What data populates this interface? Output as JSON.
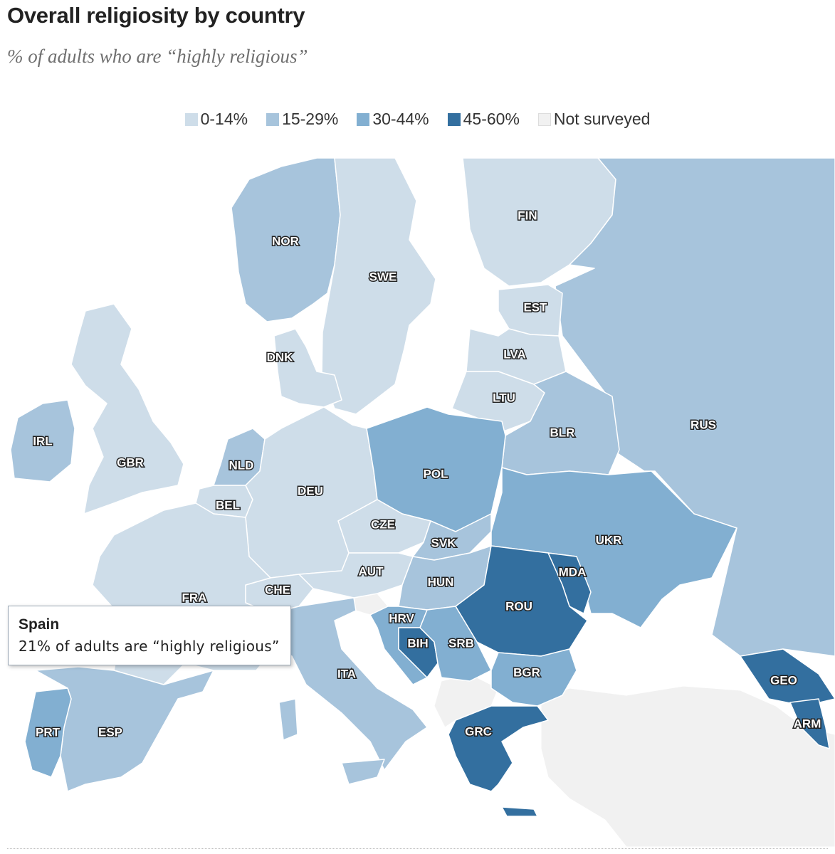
{
  "title": "Overall religiosity by country",
  "subtitle": "% of adults who are “highly religious”",
  "legend": [
    {
      "label": "0-14%",
      "color": "#cedde9"
    },
    {
      "label": "15-29%",
      "color": "#a7c4dc"
    },
    {
      "label": "30-44%",
      "color": "#82afd1"
    },
    {
      "label": "45-60%",
      "color": "#336f9f"
    },
    {
      "label": "Not surveyed",
      "color": "#f1f1f1"
    }
  ],
  "map": {
    "sea_color": "#ffffff",
    "countries": [
      {
        "code": "NOR",
        "bin": "15-29%"
      },
      {
        "code": "SWE",
        "bin": "0-14%"
      },
      {
        "code": "FIN",
        "bin": "0-14%"
      },
      {
        "code": "EST",
        "bin": "0-14%"
      },
      {
        "code": "LVA",
        "bin": "0-14%"
      },
      {
        "code": "LTU",
        "bin": "0-14%"
      },
      {
        "code": "DNK",
        "bin": "0-14%"
      },
      {
        "code": "IRL",
        "bin": "15-29%"
      },
      {
        "code": "GBR",
        "bin": "0-14%"
      },
      {
        "code": "NLD",
        "bin": "15-29%"
      },
      {
        "code": "BEL",
        "bin": "0-14%"
      },
      {
        "code": "DEU",
        "bin": "0-14%"
      },
      {
        "code": "POL",
        "bin": "30-44%"
      },
      {
        "code": "BLR",
        "bin": "15-29%"
      },
      {
        "code": "RUS",
        "bin": "15-29%"
      },
      {
        "code": "CZE",
        "bin": "0-14%"
      },
      {
        "code": "SVK",
        "bin": "15-29%"
      },
      {
        "code": "AUT",
        "bin": "0-14%"
      },
      {
        "code": "CHE",
        "bin": "0-14%"
      },
      {
        "code": "FRA",
        "bin": "0-14%"
      },
      {
        "code": "HUN",
        "bin": "15-29%"
      },
      {
        "code": "UKR",
        "bin": "30-44%"
      },
      {
        "code": "MDA",
        "bin": "45-60%"
      },
      {
        "code": "ROU",
        "bin": "45-60%"
      },
      {
        "code": "HRV",
        "bin": "30-44%"
      },
      {
        "code": "BIH",
        "bin": "45-60%"
      },
      {
        "code": "SRB",
        "bin": "30-44%"
      },
      {
        "code": "ITA",
        "bin": "15-29%"
      },
      {
        "code": "BGR",
        "bin": "30-44%"
      },
      {
        "code": "GEO",
        "bin": "45-60%"
      },
      {
        "code": "ARM",
        "bin": "45-60%"
      },
      {
        "code": "GRC",
        "bin": "45-60%"
      },
      {
        "code": "PRT",
        "bin": "30-44%"
      },
      {
        "code": "ESP",
        "bin": "15-29%"
      }
    ]
  },
  "tooltip": {
    "country": "Spain",
    "text": "21% of adults are “highly religious”"
  }
}
